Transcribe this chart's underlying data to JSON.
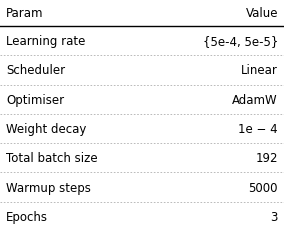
{
  "rows": [
    [
      "Learning rate",
      "{5e-4, 5e-5}"
    ],
    [
      "Scheduler",
      "Linear"
    ],
    [
      "Optimiser",
      "AdamW"
    ],
    [
      "Weight decay",
      "1e − 4"
    ],
    [
      "Total batch size",
      "192"
    ],
    [
      "Warmup steps",
      "5000"
    ],
    [
      "Epochs",
      "3"
    ]
  ],
  "col_headers": [
    "Param",
    "Value"
  ],
  "bg_color": "#ffffff",
  "header_line_color": "#000000",
  "row_line_color": "#b0b0b0",
  "text_color": "#000000",
  "font_size": 8.5,
  "header_font_size": 8.5
}
